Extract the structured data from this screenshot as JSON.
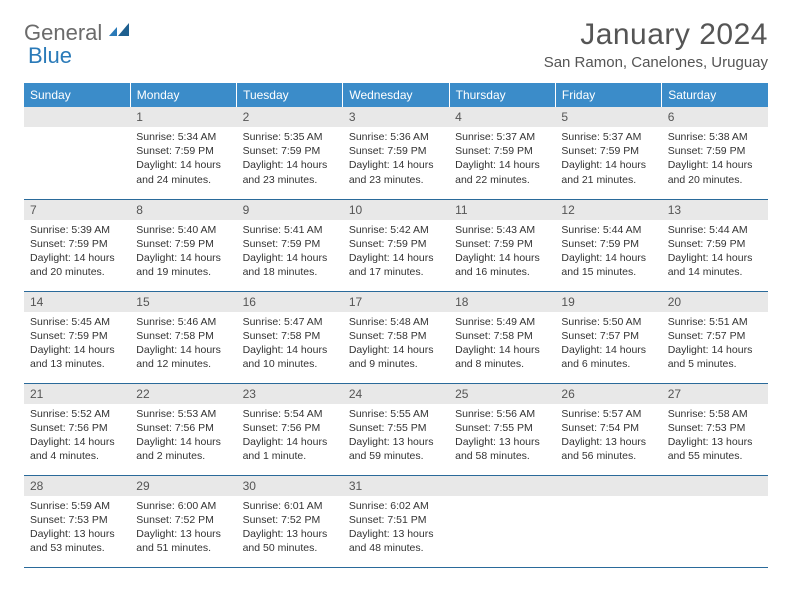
{
  "brand": {
    "word1": "General",
    "word2": "Blue"
  },
  "title": "January 2024",
  "location": "San Ramon, Canelones, Uruguay",
  "theme": {
    "header_bg": "#3b8cc9",
    "header_text": "#ffffff",
    "daynum_bg": "#e8e8e8",
    "week_divider": "#2a6a9a",
    "brand_gray": "#6b6b6b",
    "brand_blue": "#2a7ab8",
    "title_color": "#555555",
    "body_text": "#333333",
    "page_bg": "#ffffff"
  },
  "weekdays": [
    "Sunday",
    "Monday",
    "Tuesday",
    "Wednesday",
    "Thursday",
    "Friday",
    "Saturday"
  ],
  "layout": {
    "first_weekday_index": 1,
    "days_in_month": 31
  },
  "days": {
    "1": {
      "sunrise": "5:34 AM",
      "sunset": "7:59 PM",
      "daylight": "14 hours and 24 minutes."
    },
    "2": {
      "sunrise": "5:35 AM",
      "sunset": "7:59 PM",
      "daylight": "14 hours and 23 minutes."
    },
    "3": {
      "sunrise": "5:36 AM",
      "sunset": "7:59 PM",
      "daylight": "14 hours and 23 minutes."
    },
    "4": {
      "sunrise": "5:37 AM",
      "sunset": "7:59 PM",
      "daylight": "14 hours and 22 minutes."
    },
    "5": {
      "sunrise": "5:37 AM",
      "sunset": "7:59 PM",
      "daylight": "14 hours and 21 minutes."
    },
    "6": {
      "sunrise": "5:38 AM",
      "sunset": "7:59 PM",
      "daylight": "14 hours and 20 minutes."
    },
    "7": {
      "sunrise": "5:39 AM",
      "sunset": "7:59 PM",
      "daylight": "14 hours and 20 minutes."
    },
    "8": {
      "sunrise": "5:40 AM",
      "sunset": "7:59 PM",
      "daylight": "14 hours and 19 minutes."
    },
    "9": {
      "sunrise": "5:41 AM",
      "sunset": "7:59 PM",
      "daylight": "14 hours and 18 minutes."
    },
    "10": {
      "sunrise": "5:42 AM",
      "sunset": "7:59 PM",
      "daylight": "14 hours and 17 minutes."
    },
    "11": {
      "sunrise": "5:43 AM",
      "sunset": "7:59 PM",
      "daylight": "14 hours and 16 minutes."
    },
    "12": {
      "sunrise": "5:44 AM",
      "sunset": "7:59 PM",
      "daylight": "14 hours and 15 minutes."
    },
    "13": {
      "sunrise": "5:44 AM",
      "sunset": "7:59 PM",
      "daylight": "14 hours and 14 minutes."
    },
    "14": {
      "sunrise": "5:45 AM",
      "sunset": "7:59 PM",
      "daylight": "14 hours and 13 minutes."
    },
    "15": {
      "sunrise": "5:46 AM",
      "sunset": "7:58 PM",
      "daylight": "14 hours and 12 minutes."
    },
    "16": {
      "sunrise": "5:47 AM",
      "sunset": "7:58 PM",
      "daylight": "14 hours and 10 minutes."
    },
    "17": {
      "sunrise": "5:48 AM",
      "sunset": "7:58 PM",
      "daylight": "14 hours and 9 minutes."
    },
    "18": {
      "sunrise": "5:49 AM",
      "sunset": "7:58 PM",
      "daylight": "14 hours and 8 minutes."
    },
    "19": {
      "sunrise": "5:50 AM",
      "sunset": "7:57 PM",
      "daylight": "14 hours and 6 minutes."
    },
    "20": {
      "sunrise": "5:51 AM",
      "sunset": "7:57 PM",
      "daylight": "14 hours and 5 minutes."
    },
    "21": {
      "sunrise": "5:52 AM",
      "sunset": "7:56 PM",
      "daylight": "14 hours and 4 minutes."
    },
    "22": {
      "sunrise": "5:53 AM",
      "sunset": "7:56 PM",
      "daylight": "14 hours and 2 minutes."
    },
    "23": {
      "sunrise": "5:54 AM",
      "sunset": "7:56 PM",
      "daylight": "14 hours and 1 minute."
    },
    "24": {
      "sunrise": "5:55 AM",
      "sunset": "7:55 PM",
      "daylight": "13 hours and 59 minutes."
    },
    "25": {
      "sunrise": "5:56 AM",
      "sunset": "7:55 PM",
      "daylight": "13 hours and 58 minutes."
    },
    "26": {
      "sunrise": "5:57 AM",
      "sunset": "7:54 PM",
      "daylight": "13 hours and 56 minutes."
    },
    "27": {
      "sunrise": "5:58 AM",
      "sunset": "7:53 PM",
      "daylight": "13 hours and 55 minutes."
    },
    "28": {
      "sunrise": "5:59 AM",
      "sunset": "7:53 PM",
      "daylight": "13 hours and 53 minutes."
    },
    "29": {
      "sunrise": "6:00 AM",
      "sunset": "7:52 PM",
      "daylight": "13 hours and 51 minutes."
    },
    "30": {
      "sunrise": "6:01 AM",
      "sunset": "7:52 PM",
      "daylight": "13 hours and 50 minutes."
    },
    "31": {
      "sunrise": "6:02 AM",
      "sunset": "7:51 PM",
      "daylight": "13 hours and 48 minutes."
    }
  },
  "labels": {
    "sunrise": "Sunrise:",
    "sunset": "Sunset:",
    "daylight": "Daylight:"
  }
}
